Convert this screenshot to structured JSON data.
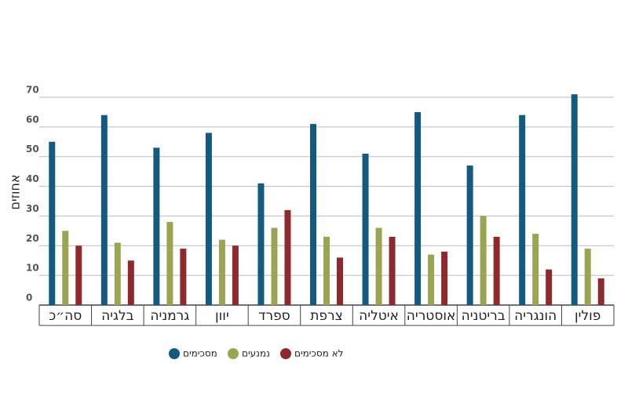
{
  "chart_data": {
    "type": "bar",
    "y_label": "אחוזים",
    "categories": [
      "סה״כ",
      "בלגיה",
      "גרמניה",
      "יוון",
      "ספרד",
      "צרפת",
      "איטליה",
      "אוסטריה",
      "בריטניה",
      "הונגריה",
      "פולין"
    ],
    "series": [
      {
        "name": "מסכימים",
        "color": "#145a80",
        "values": [
          55,
          64,
          53,
          58,
          41,
          61,
          51,
          65,
          47,
          64,
          71
        ]
      },
      {
        "name": "נמנעים",
        "color": "#9aa553",
        "values": [
          25,
          21,
          28,
          22,
          26,
          23,
          26,
          17,
          30,
          24,
          19
        ]
      },
      {
        "name": "לא מסכימים",
        "color": "#8e2a2e",
        "values": [
          20,
          15,
          19,
          20,
          32,
          16,
          23,
          18,
          23,
          12,
          9
        ]
      }
    ],
    "ylim": [
      0,
      70
    ],
    "yticks": [
      0,
      10,
      20,
      30,
      40,
      50,
      60,
      70
    ],
    "grid": true
  }
}
